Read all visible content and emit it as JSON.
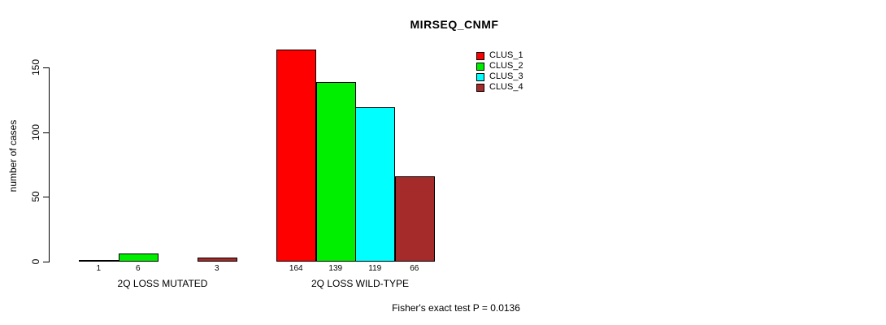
{
  "title": "MIRSEQ_CNMF",
  "footer": "Fisher's exact test P = 0.0136",
  "chart_data": {
    "type": "bar",
    "title": "MIRSEQ_CNMF",
    "xlabel": "",
    "ylabel": "number of cases",
    "yticks": [
      0,
      50,
      100,
      150
    ],
    "ylim": [
      0,
      170
    ],
    "grid": false,
    "legend_position": "top-right",
    "series": [
      {
        "name": "CLUS_1",
        "color": "#FF0000"
      },
      {
        "name": "CLUS_2",
        "color": "#00EE00"
      },
      {
        "name": "CLUS_3",
        "color": "#00FFFF"
      },
      {
        "name": "CLUS_4",
        "color": "#A52A2A"
      }
    ],
    "groups": [
      {
        "label": "2Q LOSS MUTATED",
        "values": [
          1,
          6,
          0,
          3
        ],
        "bar_labels": [
          "1",
          "6",
          "",
          "3"
        ]
      },
      {
        "label": "2Q LOSS WILD-TYPE",
        "values": [
          164,
          139,
          119,
          66
        ],
        "bar_labels": [
          "164",
          "139",
          "119",
          "66"
        ]
      }
    ],
    "annotation": "Fisher's exact test P = 0.0136"
  }
}
